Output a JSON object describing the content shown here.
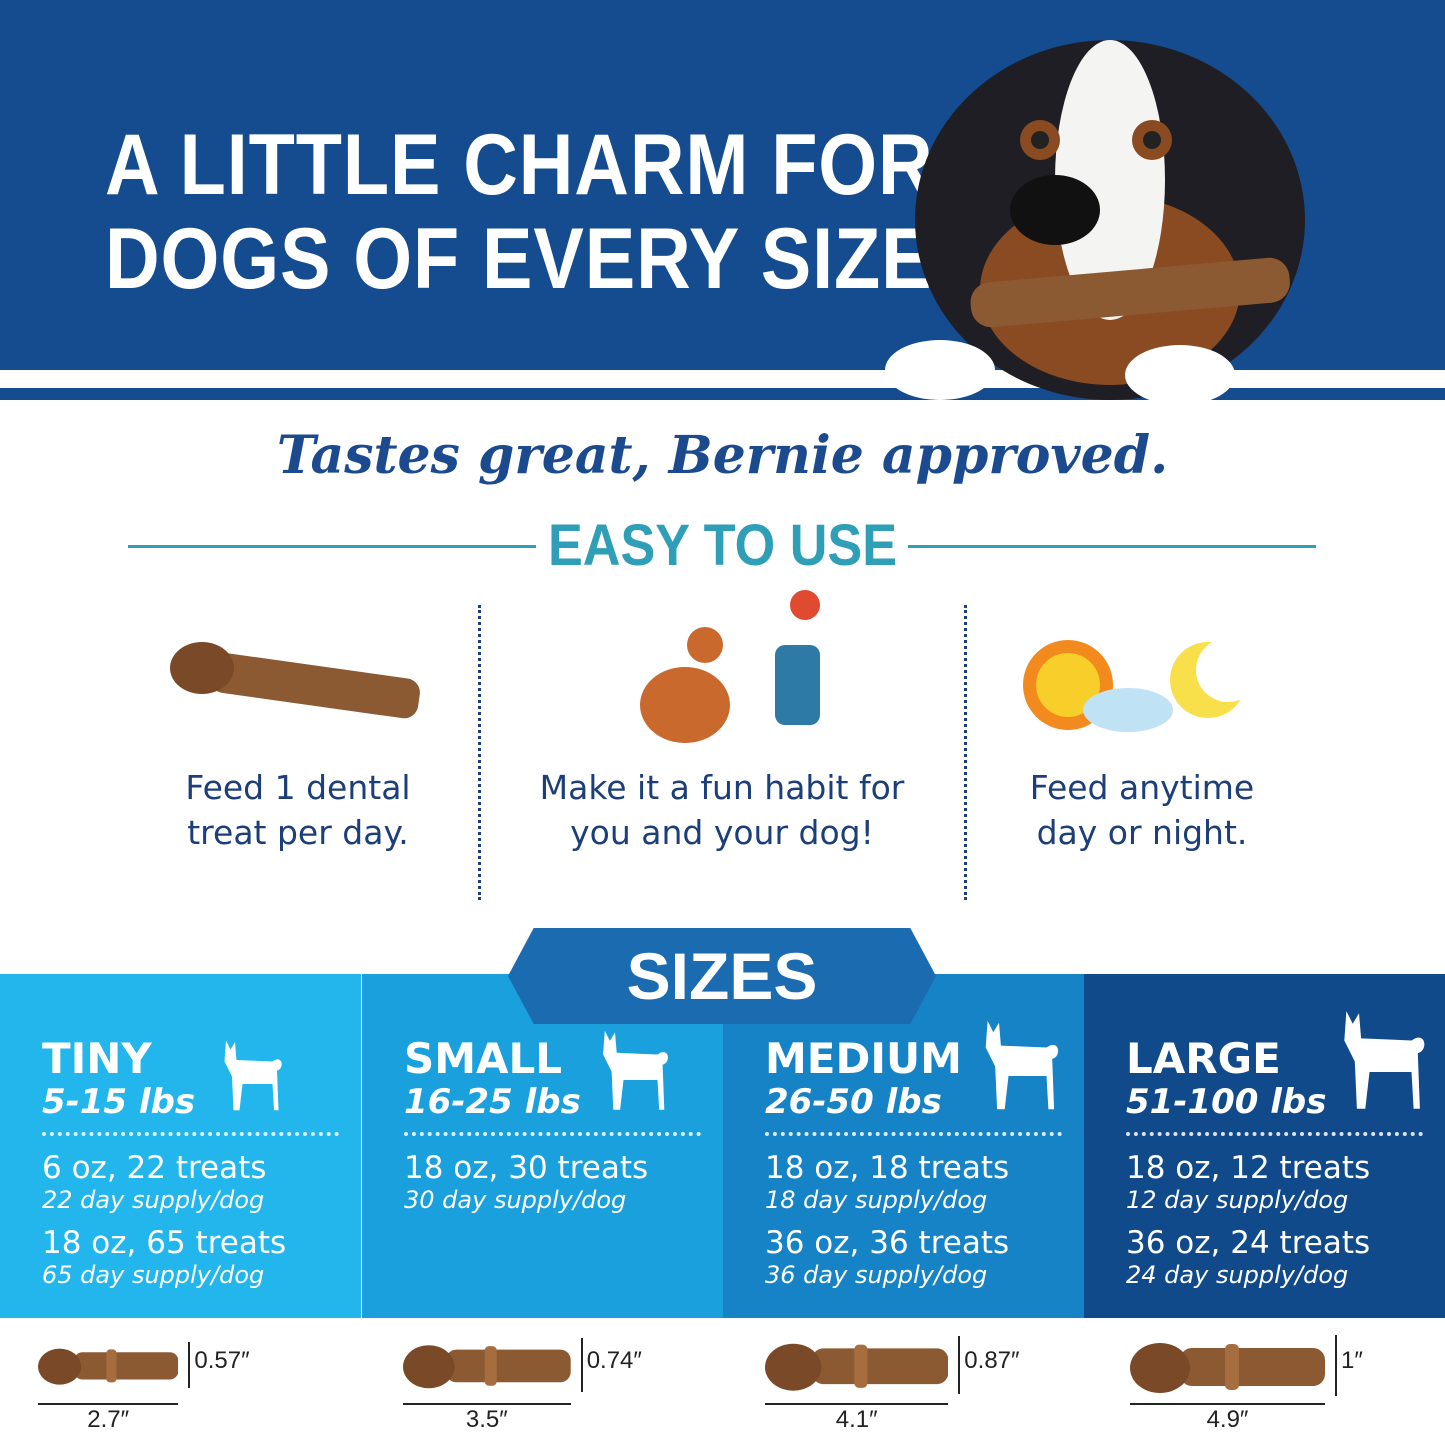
{
  "header": {
    "title_line1": "A LITTLE CHARM FOR",
    "title_line2": "DOGS OF EVERY SIZE",
    "bg_color": "#154c8f"
  },
  "tagline": "Tastes great, Bernie approved.",
  "easy": {
    "heading": "EASY TO USE",
    "accent": "#2e9fb6",
    "steps": [
      {
        "icon": "dental-treat-icon",
        "line1": "Feed 1 dental",
        "line2": "treat per day."
      },
      {
        "icon": "high-five-dog-icon",
        "line1": "Make it a fun habit for",
        "line2": "you and your dog!"
      },
      {
        "icon": "sun-moon-icon",
        "line1": "Feed anytime",
        "line2": "day or night."
      }
    ]
  },
  "sizes": {
    "heading": "SIZES",
    "columns": [
      {
        "name": "TINY",
        "weight": "5-15 lbs",
        "color": "#22b6ec",
        "packs": [
          {
            "pack": "6 oz, 22 treats",
            "supply": "22 day supply/dog"
          },
          {
            "pack": "18 oz, 65 treats",
            "supply": "65 day supply/dog"
          }
        ],
        "length": "2.7″",
        "height": "0.57″"
      },
      {
        "name": "SMALL",
        "weight": "16-25 lbs",
        "color": "#1aa0dd",
        "packs": [
          {
            "pack": "18 oz, 30 treats",
            "supply": "30 day supply/dog"
          }
        ],
        "length": "3.5″",
        "height": "0.74″"
      },
      {
        "name": "MEDIUM",
        "weight": "26-50 lbs",
        "color": "#1683c6",
        "packs": [
          {
            "pack": "18 oz, 18 treats",
            "supply": "18 day supply/dog"
          },
          {
            "pack": "36 oz, 36 treats",
            "supply": "36 day supply/dog"
          }
        ],
        "length": "4.1″",
        "height": "0.87″"
      },
      {
        "name": "LARGE",
        "weight": "51-100 lbs",
        "color": "#104a8b",
        "packs": [
          {
            "pack": "18 oz, 12 treats",
            "supply": "12 day supply/dog"
          },
          {
            "pack": "36 oz, 24 treats",
            "supply": "24 day supply/dog"
          }
        ],
        "length": "4.9″",
        "height": "1″"
      }
    ]
  }
}
